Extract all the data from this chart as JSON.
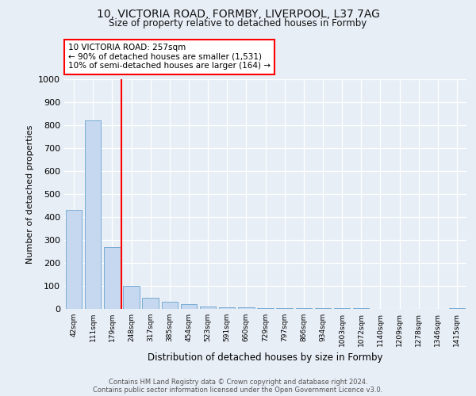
{
  "title1": "10, VICTORIA ROAD, FORMBY, LIVERPOOL, L37 7AG",
  "title2": "Size of property relative to detached houses in Formby",
  "xlabel": "Distribution of detached houses by size in Formby",
  "ylabel": "Number of detached properties",
  "bar_color": "#c5d8ef",
  "bar_edge_color": "#7aadd4",
  "categories": [
    "42sqm",
    "111sqm",
    "179sqm",
    "248sqm",
    "317sqm",
    "385sqm",
    "454sqm",
    "523sqm",
    "591sqm",
    "660sqm",
    "729sqm",
    "797sqm",
    "866sqm",
    "934sqm",
    "1003sqm",
    "1072sqm",
    "1140sqm",
    "1209sqm",
    "1278sqm",
    "1346sqm",
    "1415sqm"
  ],
  "values": [
    430,
    820,
    270,
    100,
    50,
    30,
    20,
    10,
    8,
    6,
    5,
    4,
    3,
    2,
    2,
    2,
    1,
    1,
    1,
    1,
    5
  ],
  "red_line_index": 2,
  "ylim": [
    0,
    1000
  ],
  "yticks": [
    0,
    100,
    200,
    300,
    400,
    500,
    600,
    700,
    800,
    900,
    1000
  ],
  "annotation_text": "10 VICTORIA ROAD: 257sqm\n← 90% of detached houses are smaller (1,531)\n10% of semi-detached houses are larger (164) →",
  "footer": "Contains HM Land Registry data © Crown copyright and database right 2024.\nContains public sector information licensed under the Open Government Licence v3.0.",
  "bg_color": "#e8eef6",
  "plot_bg_color": "#e8eef6",
  "grid_color": "#ffffff",
  "font_color": "#111111"
}
